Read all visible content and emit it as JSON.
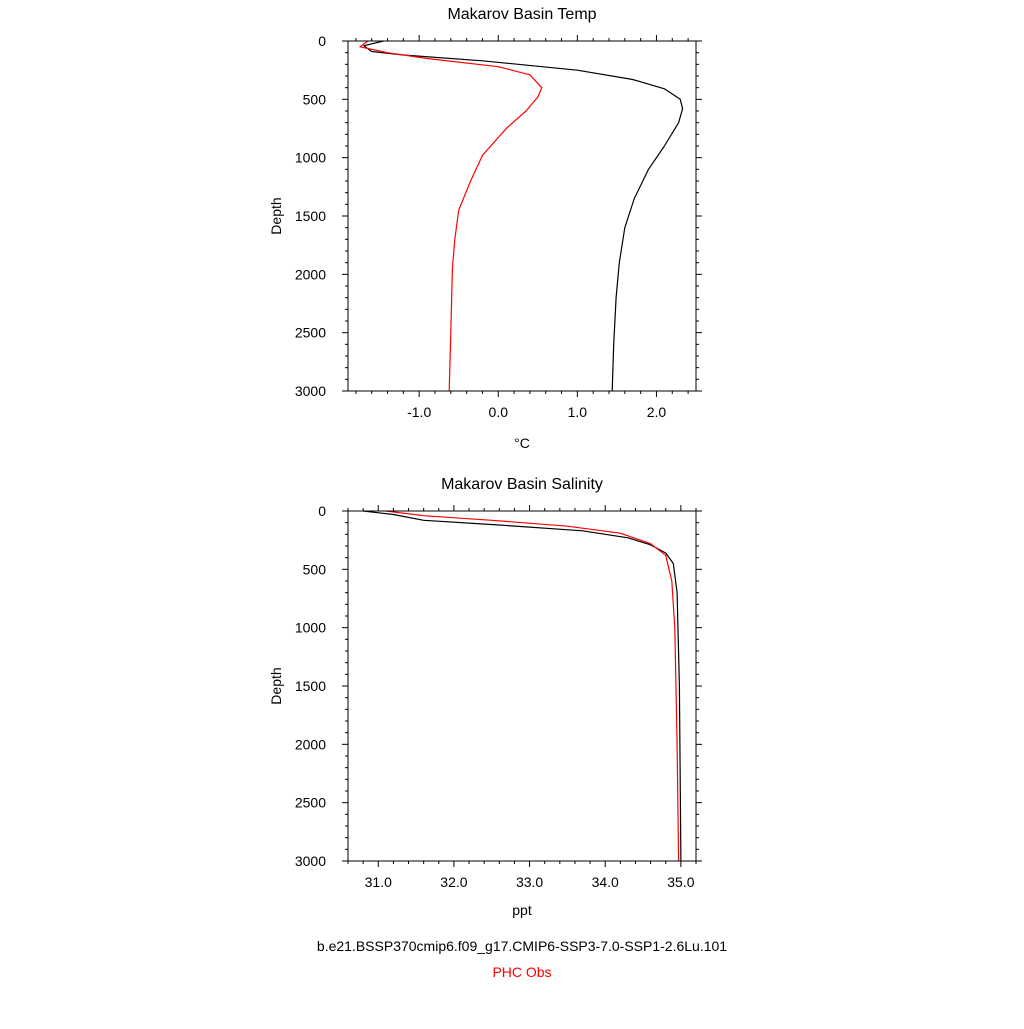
{
  "chart_data": [
    {
      "type": "line",
      "title": "Makarov Basin Temp",
      "xlabel": "°C",
      "ylabel": "Depth",
      "xlim": [
        -1.9,
        2.5
      ],
      "ylim": [
        3000,
        0
      ],
      "xticks": [
        -1.0,
        0.0,
        1.0,
        2.0
      ],
      "xtick_labels": [
        "-1.0",
        "0.0",
        "1.0",
        "2.0"
      ],
      "yticks": [
        0,
        500,
        1000,
        1500,
        2000,
        2500,
        3000
      ],
      "ytick_labels": [
        "0",
        "500",
        "1000",
        "1500",
        "2000",
        "2500",
        "3000"
      ],
      "series": [
        {
          "name": "b.e21.BSSP370cmip6.f09_g17.CMIP6-SSP3-7.0-SSP1-2.6Lu.101",
          "color": "#000000",
          "x": [
            -1.45,
            -1.7,
            -1.6,
            -1.2,
            -0.2,
            1.0,
            1.7,
            2.1,
            2.3,
            2.33,
            2.28,
            2.1,
            1.9,
            1.72,
            1.6,
            1.53,
            1.49,
            1.46,
            1.44
          ],
          "y": [
            0,
            40,
            90,
            120,
            170,
            250,
            330,
            410,
            500,
            580,
            700,
            900,
            1100,
            1350,
            1600,
            1900,
            2200,
            2600,
            3000
          ]
        },
        {
          "name": "PHC Obs",
          "color": "#ff0000",
          "x": [
            -1.65,
            -1.75,
            -1.4,
            -0.9,
            0.0,
            0.4,
            0.55,
            0.5,
            0.35,
            0.1,
            -0.2,
            -0.35,
            -0.5,
            -0.55,
            -0.58,
            -0.6,
            -0.62
          ],
          "y": [
            0,
            50,
            100,
            150,
            220,
            290,
            400,
            480,
            600,
            750,
            980,
            1200,
            1450,
            1700,
            1950,
            2500,
            3000
          ]
        }
      ]
    },
    {
      "type": "line",
      "title": "Makarov Basin Salinity",
      "xlabel": "ppt",
      "ylabel": "Depth",
      "xlim": [
        30.6,
        35.2
      ],
      "ylim": [
        3000,
        0
      ],
      "xticks": [
        31.0,
        32.0,
        33.0,
        34.0,
        35.0
      ],
      "xtick_labels": [
        "31.0",
        "32.0",
        "33.0",
        "34.0",
        "35.0"
      ],
      "yticks": [
        0,
        500,
        1000,
        1500,
        2000,
        2500,
        3000
      ],
      "ytick_labels": [
        "0",
        "500",
        "1000",
        "1500",
        "2000",
        "2500",
        "3000"
      ],
      "series": [
        {
          "name": "b.e21.BSSP370cmip6.f09_g17.CMIP6-SSP3-7.0-SSP1-2.6Lu.101",
          "color": "#000000",
          "x": [
            30.8,
            31.2,
            31.6,
            32.6,
            33.7,
            34.3,
            34.6,
            34.8,
            34.9,
            34.95,
            34.98,
            35.0
          ],
          "y": [
            0,
            30,
            80,
            120,
            170,
            230,
            290,
            360,
            450,
            700,
            1500,
            3000
          ]
        },
        {
          "name": "PHC Obs",
          "color": "#ff0000",
          "x": [
            31.1,
            31.6,
            32.5,
            33.5,
            34.2,
            34.6,
            34.8,
            34.88,
            34.92,
            34.95,
            34.97
          ],
          "y": [
            0,
            40,
            80,
            130,
            190,
            280,
            380,
            600,
            1000,
            2000,
            3000
          ]
        }
      ]
    }
  ],
  "legend": [
    {
      "text": "b.e21.BSSP370cmip6.f09_g17.CMIP6-SSP3-7.0-SSP1-2.6Lu.101",
      "color": "#000000"
    },
    {
      "text": "PHC Obs",
      "color": "#ff0000"
    }
  ]
}
